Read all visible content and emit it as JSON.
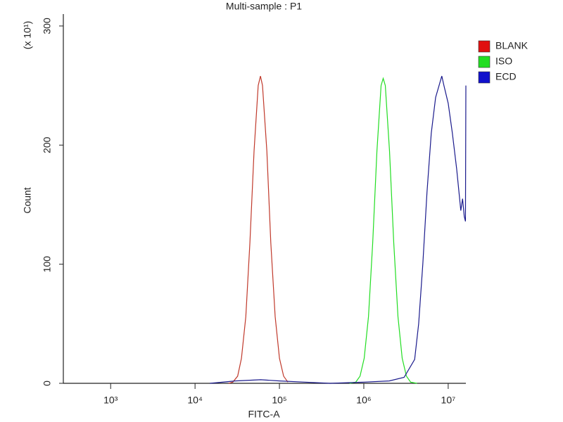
{
  "chart_data": {
    "type": "line",
    "title": "Multi-sample : P1",
    "x_label": "FITC-A",
    "y_label": "Count",
    "y_multiplier": "(x 10¹)",
    "xscale": "log",
    "xlim": [
      275,
      16200000
    ],
    "xticks": [
      {
        "value": 1000,
        "label": "10³"
      },
      {
        "value": 10000,
        "label": "10⁴"
      },
      {
        "value": 100000,
        "label": "10⁵"
      },
      {
        "value": 1000000,
        "label": "10⁶"
      },
      {
        "value": 10000000,
        "label": "10⁷"
      }
    ],
    "ylim": [
      0,
      310
    ],
    "yticks": [
      0,
      100,
      200,
      300
    ],
    "legend_position": "right",
    "series": [
      {
        "name": "BLANK",
        "color": "#c0392b",
        "legend_color": "#e01010",
        "x": [
          25000,
          28000,
          32000,
          35500,
          40000,
          44700,
          50000,
          56000,
          59600,
          63000,
          71000,
          79000,
          89000,
          100000,
          112000,
          126000
        ],
        "values": [
          0,
          1,
          6,
          21,
          56,
          118,
          195,
          250,
          258,
          250,
          195,
          118,
          56,
          21,
          6,
          1
        ]
      },
      {
        "name": "ISO",
        "color": "#22dd22",
        "legend_color": "#22dd22",
        "x": [
          676000,
          803000,
          902000,
          1010000,
          1135000,
          1274000,
          1429000,
          1603000,
          1698000,
          1799000,
          2018000,
          2265000,
          2541000,
          2851000,
          3199000,
          3589000,
          4266000
        ],
        "values": [
          0,
          1,
          6,
          21,
          56,
          118,
          195,
          250,
          256,
          250,
          195,
          118,
          56,
          21,
          6,
          1,
          0
        ]
      },
      {
        "name": "ECD",
        "color": "#1a1a8c",
        "legend_color": "#1010cc",
        "x": [
          15000,
          30000,
          60000,
          100000,
          200000,
          400000,
          1000000,
          2000000,
          3000000,
          4000000,
          4470000,
          5000000,
          5600000,
          6300000,
          7100000,
          8400000,
          8900000,
          10000000,
          11200000,
          12600000,
          14100000,
          14800000,
          15500000,
          16000000,
          16200000
        ],
        "values": [
          0,
          2,
          3,
          2,
          1,
          0,
          1,
          2,
          5,
          20,
          50,
          100,
          160,
          210,
          240,
          258,
          250,
          235,
          210,
          180,
          145,
          155,
          140,
          136,
          250
        ]
      }
    ]
  }
}
